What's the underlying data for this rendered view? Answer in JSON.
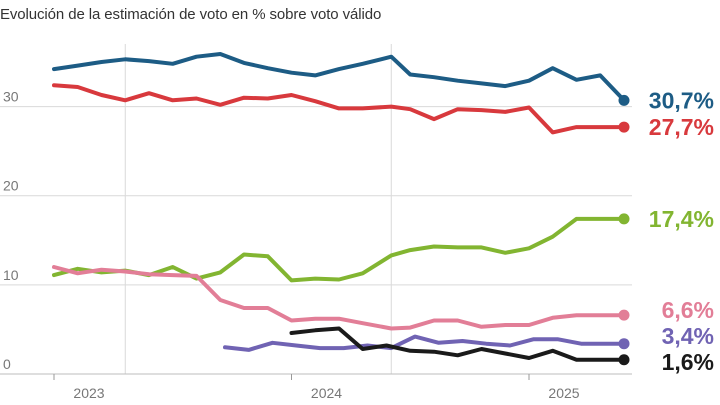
{
  "chart_data": {
    "type": "line",
    "title": "Evolución de la estimación de voto en % sobre voto válido",
    "ylim": [
      0,
      35
    ],
    "yticks": [
      {
        "value": 0,
        "label": "0"
      },
      {
        "value": 10,
        "label": "10"
      },
      {
        "value": 20,
        "label": "20"
      },
      {
        "value": 30,
        "label": "30"
      }
    ],
    "xlim": [
      2022.97,
      2025.55
    ],
    "xticks": [
      {
        "value": 2023,
        "label": "2023"
      },
      {
        "value": 2024,
        "label": "2024"
      },
      {
        "value": 2025,
        "label": "2025"
      }
    ],
    "vgrid": [
      2023.3,
      2024.42
    ],
    "series": [
      {
        "name": "serie-azul",
        "color": "#1d5c85",
        "end_label": "30,7%",
        "x": [
          2023.0,
          2023.1,
          2023.2,
          2023.3,
          2023.4,
          2023.5,
          2023.6,
          2023.7,
          2023.8,
          2023.9,
          2024.0,
          2024.1,
          2024.2,
          2024.3,
          2024.42,
          2024.5,
          2024.6,
          2024.7,
          2024.8,
          2024.9,
          2025.0,
          2025.1,
          2025.2,
          2025.3,
          2025.4
        ],
        "y": [
          34.2,
          34.6,
          35.0,
          35.3,
          35.1,
          34.8,
          35.6,
          35.9,
          34.9,
          34.3,
          33.8,
          33.5,
          34.2,
          34.8,
          35.6,
          33.6,
          33.3,
          32.9,
          32.6,
          32.3,
          32.9,
          34.3,
          33.0,
          33.5,
          30.7
        ]
      },
      {
        "name": "serie-roja",
        "color": "#d8393d",
        "end_label": "27,7%",
        "x": [
          2023.0,
          2023.1,
          2023.2,
          2023.3,
          2023.4,
          2023.5,
          2023.6,
          2023.7,
          2023.8,
          2023.9,
          2024.0,
          2024.1,
          2024.2,
          2024.3,
          2024.42,
          2024.5,
          2024.6,
          2024.7,
          2024.8,
          2024.9,
          2025.0,
          2025.1,
          2025.2,
          2025.3,
          2025.4
        ],
        "y": [
          32.4,
          32.2,
          31.3,
          30.7,
          31.5,
          30.7,
          30.9,
          30.2,
          31.0,
          30.9,
          31.3,
          30.6,
          29.8,
          29.8,
          30.0,
          29.7,
          28.6,
          29.7,
          29.6,
          29.4,
          29.9,
          27.1,
          27.7,
          27.7,
          27.7
        ]
      },
      {
        "name": "serie-verde",
        "color": "#82b531",
        "end_label": "17,4%",
        "x": [
          2023.0,
          2023.1,
          2023.2,
          2023.3,
          2023.4,
          2023.5,
          2023.6,
          2023.7,
          2023.8,
          2023.9,
          2024.0,
          2024.1,
          2024.2,
          2024.3,
          2024.42,
          2024.5,
          2024.6,
          2024.7,
          2024.8,
          2024.9,
          2025.0,
          2025.1,
          2025.2,
          2025.3,
          2025.4
        ],
        "y": [
          11.1,
          11.8,
          11.4,
          11.6,
          11.1,
          12.0,
          10.7,
          11.4,
          13.4,
          13.2,
          10.5,
          10.7,
          10.6,
          11.3,
          13.3,
          13.9,
          14.3,
          14.2,
          14.2,
          13.6,
          14.1,
          15.4,
          17.4,
          17.4,
          17.4
        ]
      },
      {
        "name": "serie-rosa",
        "color": "#e27e97",
        "end_label": "6,6%",
        "x": [
          2023.0,
          2023.1,
          2023.2,
          2023.3,
          2023.4,
          2023.5,
          2023.6,
          2023.7,
          2023.8,
          2023.9,
          2024.0,
          2024.1,
          2024.2,
          2024.3,
          2024.42,
          2024.5,
          2024.6,
          2024.7,
          2024.8,
          2024.9,
          2025.0,
          2025.1,
          2025.2,
          2025.3,
          2025.4
        ],
        "y": [
          12.0,
          11.3,
          11.7,
          11.5,
          11.2,
          11.1,
          11.0,
          8.3,
          7.4,
          7.4,
          6.0,
          6.2,
          6.2,
          5.7,
          5.1,
          5.2,
          6.0,
          6.0,
          5.3,
          5.5,
          5.5,
          6.3,
          6.6,
          6.6,
          6.6
        ]
      },
      {
        "name": "serie-morada",
        "color": "#7063b3",
        "end_label": "3,4%",
        "x": [
          2023.72,
          2023.82,
          2023.92,
          2024.02,
          2024.12,
          2024.22,
          2024.32,
          2024.42,
          2024.52,
          2024.62,
          2024.72,
          2024.82,
          2024.92,
          2025.02,
          2025.12,
          2025.22,
          2025.32,
          2025.4
        ],
        "y": [
          3.0,
          2.7,
          3.5,
          3.2,
          2.9,
          2.9,
          3.2,
          2.9,
          4.2,
          3.5,
          3.7,
          3.4,
          3.2,
          3.9,
          3.9,
          3.4,
          3.4,
          3.4
        ]
      },
      {
        "name": "serie-negra",
        "color": "#1a1a1a",
        "end_label": "1,6%",
        "x": [
          2024.0,
          2024.1,
          2024.2,
          2024.3,
          2024.4,
          2024.5,
          2024.6,
          2024.7,
          2024.8,
          2024.9,
          2025.0,
          2025.1,
          2025.2,
          2025.3,
          2025.4
        ],
        "y": [
          4.6,
          4.9,
          5.1,
          2.8,
          3.2,
          2.6,
          2.5,
          2.1,
          2.8,
          2.3,
          1.8,
          2.6,
          1.6,
          1.6,
          1.6
        ]
      }
    ]
  }
}
